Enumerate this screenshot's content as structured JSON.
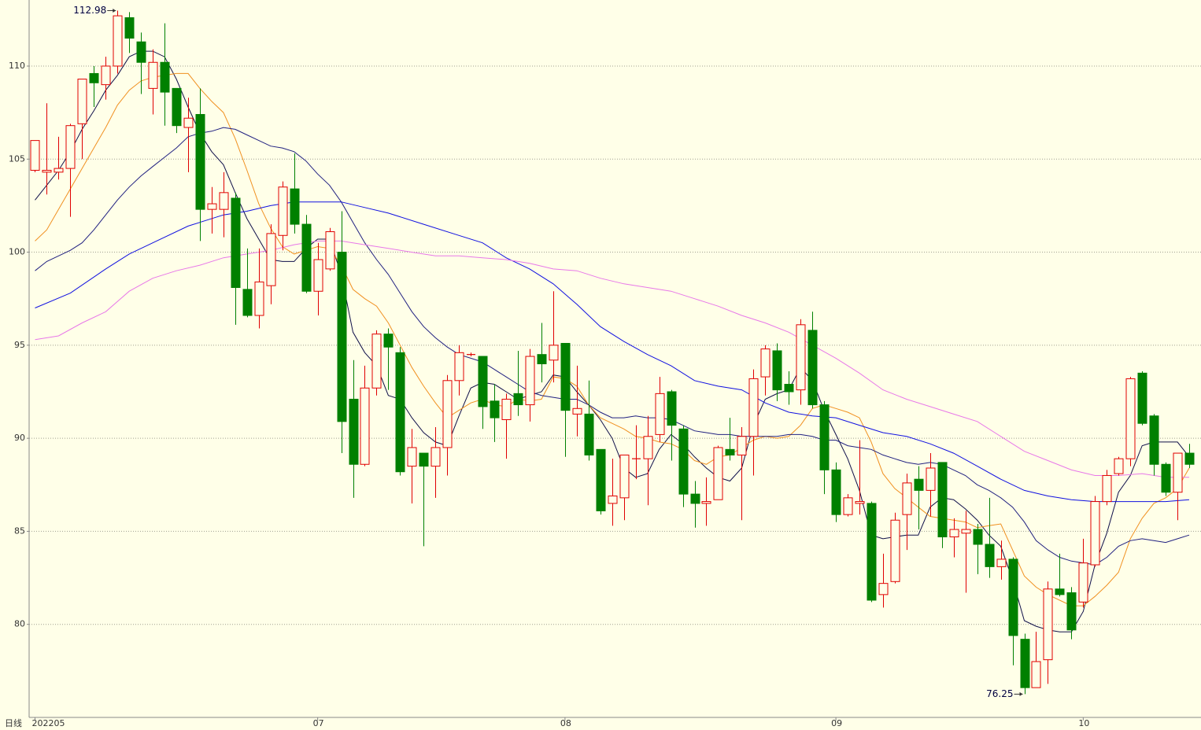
{
  "chart_data": {
    "type": "candlestick",
    "period_label": "日线",
    "up_color": "#e00000",
    "down_color": "#008000",
    "grid": true,
    "ylim": [
      75.0,
      113.55
    ],
    "yticks": [
      80,
      85,
      90,
      95,
      100,
      105,
      110
    ],
    "xlim": [
      -0.5,
      99
    ],
    "xticks": [
      {
        "value": 0,
        "label": "202205"
      },
      {
        "value": 24,
        "label": "07"
      },
      {
        "value": 45,
        "label": "08"
      },
      {
        "value": 68,
        "label": "09"
      },
      {
        "value": 89,
        "label": "10"
      }
    ],
    "open": [
      104.4,
      104.3,
      104.3,
      104.5,
      106.9,
      109.6,
      109,
      110,
      112.6,
      111.3,
      108.8,
      110.2,
      108.8,
      106.7,
      107.4,
      102.3,
      102.3,
      102.9,
      98,
      96.6,
      98.2,
      100.9,
      103.4,
      101.5,
      97.9,
      99.1,
      100,
      92.1,
      88.6,
      92.7,
      95.6,
      94.6,
      88.5,
      89.2,
      88.5,
      89.5,
      93.1,
      94.5,
      94.4,
      92,
      91,
      92.4,
      91.8,
      94.5,
      94.2,
      95.1,
      91.3,
      91.3,
      89.4,
      86.5,
      86.8,
      88.9,
      88.9,
      90.2,
      92.5,
      90.5,
      87,
      86.5,
      86.7,
      89.4,
      89.1,
      90.1,
      93.3,
      94.7,
      92.9,
      92.6,
      95.8,
      91.8,
      88.3,
      85.9,
      86.5,
      86.5,
      81.6,
      82.3,
      85.9,
      87.8,
      87.2,
      88.7,
      84.7,
      84.9,
      85.1,
      84.3,
      83.1,
      83.5,
      79.2,
      76.6,
      78.1,
      81.9,
      81.7,
      81.2,
      83.2,
      86.6,
      88.1,
      88.9,
      93.5,
      91.2,
      88.6,
      87.1,
      89.2
    ],
    "high": [
      106,
      108,
      106.2,
      106.9,
      109.3,
      110,
      110.5,
      112.98,
      112.9,
      111.8,
      110.9,
      112.3,
      108.8,
      108.3,
      108.8,
      103.5,
      104.3,
      103.2,
      100.2,
      100.2,
      101.5,
      103.8,
      105.3,
      102,
      100.5,
      101.3,
      102.2,
      94.2,
      93.9,
      95.8,
      95.9,
      94.9,
      90.5,
      89.2,
      90.6,
      93.4,
      95,
      94.6,
      94.4,
      92.9,
      92.4,
      94.7,
      94.8,
      96.2,
      97.9,
      95.1,
      93.9,
      93.1,
      89.4,
      88.9,
      89.1,
      90.7,
      91.2,
      93.3,
      92.6,
      90.7,
      87.7,
      87.9,
      89.6,
      91.1,
      90.6,
      93.7,
      95,
      95.1,
      93.6,
      96.4,
      96.8,
      92,
      88.7,
      87,
      89.9,
      86.6,
      83.8,
      86,
      88.1,
      88.5,
      89.2,
      88.7,
      85.7,
      86.1,
      85.4,
      86.8,
      84.5,
      83.6,
      79.5,
      79.6,
      82.3,
      83.8,
      82,
      84.6,
      86.9,
      88.3,
      89,
      93.3,
      93.6,
      91.3,
      88.7,
      89.2,
      89.7
    ],
    "low": [
      104.3,
      103.1,
      103.9,
      101.9,
      105,
      107.8,
      108.2,
      109.6,
      110.7,
      108.5,
      107.4,
      106.8,
      106.4,
      104.3,
      100.6,
      101,
      100.8,
      96.1,
      96.5,
      95.9,
      97.2,
      100.1,
      101,
      97.8,
      96.6,
      99,
      89.2,
      86.8,
      88.5,
      92.3,
      92.6,
      88,
      86.5,
      84.2,
      86.8,
      88,
      92.3,
      94.4,
      90.5,
      89.8,
      88.9,
      91.2,
      90.9,
      93,
      93,
      89,
      90.1,
      88.8,
      85.9,
      85.3,
      85.6,
      87.8,
      86.4,
      89.8,
      88.8,
      86.3,
      85.2,
      85.3,
      86.7,
      88.8,
      85.6,
      88,
      92.3,
      92,
      91.8,
      91.8,
      91.6,
      87,
      85.5,
      85.8,
      85.9,
      81.2,
      80.9,
      82.2,
      84,
      85.1,
      85.8,
      84.1,
      83.6,
      81.7,
      82.7,
      82.5,
      82.4,
      77.8,
      76.25,
      76.6,
      76.8,
      81.5,
      79.2,
      80.9,
      83.1,
      86.4,
      88,
      88.5,
      90.7,
      88,
      86.9,
      85.6,
      88.4
    ],
    "close": [
      106,
      104.4,
      104.5,
      106.8,
      109.3,
      109.1,
      110,
      112.7,
      111.5,
      110.2,
      110.2,
      108.6,
      106.8,
      107.2,
      102.3,
      102.6,
      103.2,
      98.1,
      96.6,
      98.4,
      101,
      103.5,
      101.5,
      97.9,
      99.6,
      101.1,
      90.9,
      88.6,
      92.7,
      95.6,
      94.9,
      88.2,
      89.5,
      88.5,
      89.5,
      93.1,
      94.6,
      94.5,
      91.7,
      91.1,
      92.1,
      91.8,
      94.4,
      94,
      95,
      91.5,
      91.6,
      89.1,
      86.1,
      86.9,
      89.1,
      88.9,
      90.1,
      92.4,
      90.7,
      87,
      86.5,
      86.6,
      89.5,
      89.1,
      90.1,
      93.2,
      94.8,
      92.6,
      92.5,
      96.1,
      91.8,
      88.3,
      85.9,
      86.8,
      86.6,
      81.3,
      82.2,
      85.6,
      87.6,
      87.2,
      88.4,
      84.7,
      85.1,
      85.1,
      84.3,
      83.1,
      83.5,
      79.4,
      76.6,
      78,
      81.9,
      81.6,
      79.7,
      83.3,
      86.6,
      88,
      88.9,
      93.2,
      90.8,
      88.6,
      87.1,
      89.2,
      88.6
    ],
    "series": [
      {
        "color": "#10104a",
        "values": [
          102.8,
          103.6,
          104.4,
          105.4,
          106.6,
          107.6,
          108.7,
          109.5,
          110.5,
          110.8,
          110.8,
          110.5,
          109.3,
          107.8,
          106.4,
          105.4,
          104.7,
          103.2,
          101.8,
          100.7,
          99.6,
          99.5,
          99.5,
          100.2,
          100.7,
          100.7,
          98.8,
          95.7,
          94.6,
          93.9,
          92.3,
          92.1,
          91.1,
          90.3,
          89.8,
          89.6,
          91.2,
          92.7,
          93,
          92.9,
          92.5,
          92.1,
          92.3,
          92.5,
          93.4,
          93.3,
          92.5,
          91.8,
          91,
          90,
          88.4,
          87.9,
          88.1,
          89.4,
          90.2,
          89.7,
          89,
          88.4,
          87.9,
          87.7,
          88.4,
          90.7,
          92.1,
          92.4,
          92.6,
          93.8,
          93.1,
          91.5,
          90.2,
          88.9,
          87.2,
          84.8,
          84.6,
          84.7,
          84.8,
          84.8,
          86.3,
          86.8,
          86.7,
          86.2,
          85.6,
          84.8,
          84.2,
          82.4,
          80.2,
          79.9,
          79.7,
          79.6,
          79.6,
          80.7,
          83.2,
          84.9,
          87.1,
          88,
          89.6,
          89.8,
          89.8,
          89.8,
          89
        ]
      },
      {
        "color": "#f09020",
        "values": [
          100.6,
          101.2,
          102.3,
          103.4,
          104.5,
          105.6,
          106.7,
          107.9,
          108.7,
          109.2,
          109.4,
          109.5,
          109.6,
          109.6,
          108.8,
          108.1,
          107.5,
          106.1,
          104.4,
          102.6,
          101.3,
          100.3,
          99.9,
          100.1,
          100.3,
          100.2,
          99.3,
          98,
          97.5,
          97.1,
          96.2,
          95,
          93.8,
          92.8,
          91.9,
          91.1,
          91.5,
          91.9,
          92.1,
          91.8,
          91.7,
          92.1,
          92,
          92.1,
          93.3,
          93.2,
          92.8,
          91.8,
          91.1,
          90.8,
          90.5,
          90.1,
          90,
          89.8,
          89.7,
          89.4,
          88.8,
          88.6,
          89,
          89.1,
          89.5,
          89.9,
          90.1,
          90,
          90.1,
          90.7,
          91.6,
          91.8,
          91.6,
          91.4,
          91.1,
          89.8,
          88.1,
          87.3,
          86.8,
          86.3,
          85.8,
          85.7,
          85.6,
          85.5,
          85.2,
          85.3,
          85.4,
          84,
          82.6,
          82,
          81.6,
          81.3,
          81,
          81,
          81.5,
          82.1,
          82.8,
          84.6,
          85.7,
          86.5,
          86.8,
          87.3,
          88.4
        ]
      },
      {
        "color": "#202080",
        "values": [
          99,
          99.5,
          99.8,
          100.1,
          100.5,
          101.2,
          102,
          102.8,
          103.5,
          104.1,
          104.6,
          105.1,
          105.6,
          106.2,
          106.4,
          106.5,
          106.7,
          106.6,
          106.3,
          106,
          105.7,
          105.6,
          105.4,
          104.9,
          104.2,
          103.6,
          102.7,
          101.6,
          100.5,
          99.6,
          98.8,
          97.8,
          96.8,
          96,
          95.4,
          94.9,
          94.5,
          94.3,
          94.1,
          93.7,
          93.3,
          92.9,
          92.5,
          92.3,
          92.2,
          92.1,
          92.1,
          91.8,
          91.4,
          91.1,
          91.1,
          91.2,
          91.1,
          91.1,
          91,
          90.7,
          90.4,
          90.3,
          90.2,
          90.2,
          90.1,
          90.1,
          90.1,
          90.1,
          90.2,
          90.2,
          90.1,
          89.9,
          89.9,
          89.6,
          89.5,
          89.4,
          89.1,
          88.9,
          88.7,
          88.6,
          88.7,
          88.6,
          88.3,
          88,
          87.5,
          87.2,
          86.8,
          86.3,
          85.5,
          84.5,
          84,
          83.6,
          83.4,
          83.3,
          83.2,
          83.6,
          84.2,
          84.5,
          84.6,
          84.5,
          84.4,
          84.6,
          84.8
        ]
      },
      {
        "color": "#1010e0",
        "x": [
          0,
          3,
          6,
          8,
          10,
          13,
          16,
          18,
          20,
          22,
          24,
          26,
          28,
          30,
          33,
          36,
          38,
          40,
          42,
          44,
          46,
          48,
          50,
          52,
          54,
          56,
          58,
          60,
          62,
          64,
          66,
          68,
          70,
          72,
          74,
          76,
          78,
          80,
          82,
          84,
          86,
          88,
          90,
          92,
          94,
          96,
          98
        ],
        "values": [
          97,
          97.8,
          99.1,
          99.9,
          100.5,
          101.4,
          102,
          102.2,
          102.5,
          102.7,
          102.7,
          102.7,
          102.4,
          102.1,
          101.5,
          100.9,
          100.5,
          99.7,
          99.1,
          98.3,
          97.2,
          96,
          95.2,
          94.5,
          93.9,
          93.1,
          92.8,
          92.6,
          91.9,
          91.4,
          91.2,
          91.1,
          90.7,
          90.3,
          90.1,
          89.7,
          89.2,
          88.5,
          87.8,
          87.2,
          86.9,
          86.7,
          86.6,
          86.6,
          86.6,
          86.6,
          86.7
        ]
      },
      {
        "color": "#e878e8",
        "x": [
          0,
          2,
          4,
          6,
          8,
          10,
          12,
          14,
          16,
          18,
          20,
          22,
          24,
          26,
          28,
          30,
          32,
          34,
          36,
          38,
          40,
          42,
          44,
          46,
          48,
          50,
          52,
          54,
          56,
          58,
          60,
          62,
          64,
          66,
          68,
          70,
          72,
          74,
          76,
          78,
          80,
          82,
          84,
          86,
          88,
          90,
          92,
          94,
          96,
          98
        ],
        "values": [
          95.3,
          95.5,
          96.2,
          96.8,
          97.9,
          98.6,
          99,
          99.3,
          99.7,
          99.9,
          100.1,
          100.4,
          100.6,
          100.6,
          100.4,
          100.2,
          100,
          99.8,
          99.8,
          99.7,
          99.6,
          99.4,
          99.1,
          99,
          98.6,
          98.3,
          98.1,
          97.9,
          97.5,
          97.1,
          96.6,
          96.2,
          95.7,
          95,
          94.3,
          93.5,
          92.6,
          92.1,
          91.7,
          91.3,
          90.9,
          90.1,
          89.3,
          88.8,
          88.3,
          88,
          88,
          88.1,
          87.9,
          87.9
        ]
      }
    ],
    "annotations": [
      {
        "x": 7,
        "y": 112.98
      },
      {
        "x": 84,
        "y": 76.25
      }
    ]
  }
}
